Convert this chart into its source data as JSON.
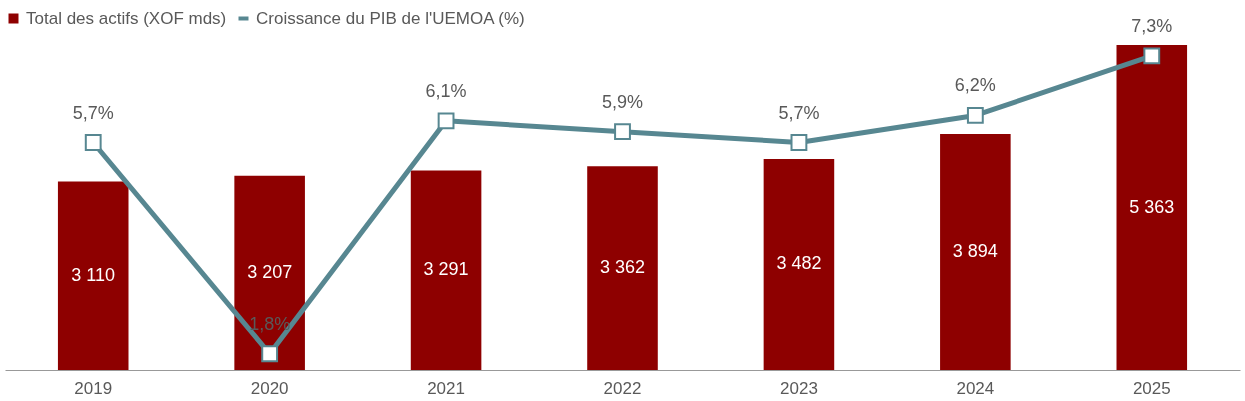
{
  "chart_data": {
    "type": "bar",
    "categories": [
      "2019",
      "2020",
      "2021",
      "2022",
      "2023",
      "2024",
      "2025"
    ],
    "series": [
      {
        "name": "Total des actifs (XOF mds)",
        "color": "#8e0000",
        "values": [
          3110,
          3207,
          3291,
          3362,
          3482,
          3894,
          5363
        ],
        "value_labels": [
          "3 110",
          "3 207",
          "3 291",
          "3 362",
          "3 482",
          "3 894",
          "5 363"
        ]
      },
      {
        "name": "Croissance du PIB de l'UEMOA (%)",
        "type": "line",
        "axis": "y2",
        "color": "#578791",
        "values": [
          5.7,
          1.8,
          6.1,
          5.9,
          5.7,
          6.2,
          7.3
        ],
        "value_labels": [
          "5,7%",
          "1,8%",
          "6,1%",
          "5,9%",
          "5,7%",
          "6,2%",
          "7,3%"
        ]
      }
    ],
    "legend": "top",
    "grid": false,
    "marker": "square",
    "line_style": "solid",
    "tick_labels": "x"
  }
}
